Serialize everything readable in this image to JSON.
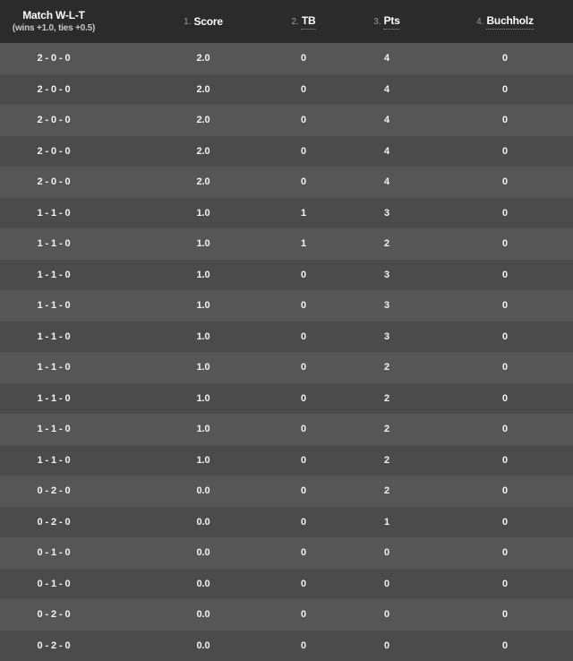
{
  "colors": {
    "header_bg": "#2b2b2b",
    "row_odd_bg": "#565656",
    "row_even_bg": "#4b4b4b",
    "row_text": "#f3f3f3",
    "header_label": "#fdfdfd",
    "header_prefix": "#9b9b9b",
    "subtitle": "#c9c9c9",
    "underline": "#909090"
  },
  "header": {
    "col1": {
      "title": "Match W-L-T",
      "subtitle": "(wins +1.0, ties +0.5)"
    },
    "columns": [
      {
        "prefix": "1.",
        "label": "Score",
        "abbr": false
      },
      {
        "prefix": "2.",
        "label": "TB",
        "abbr": true
      },
      {
        "prefix": "3.",
        "label": "Pts",
        "abbr": true
      },
      {
        "prefix": "4.",
        "label": "Buchholz",
        "abbr": true
      }
    ]
  },
  "rows": [
    {
      "wlt": "2 - 0 - 0",
      "score": "2.0",
      "tb": "0",
      "pts": "4",
      "buchholz": "0"
    },
    {
      "wlt": "2 - 0 - 0",
      "score": "2.0",
      "tb": "0",
      "pts": "4",
      "buchholz": "0"
    },
    {
      "wlt": "2 - 0 - 0",
      "score": "2.0",
      "tb": "0",
      "pts": "4",
      "buchholz": "0"
    },
    {
      "wlt": "2 - 0 - 0",
      "score": "2.0",
      "tb": "0",
      "pts": "4",
      "buchholz": "0"
    },
    {
      "wlt": "2 - 0 - 0",
      "score": "2.0",
      "tb": "0",
      "pts": "4",
      "buchholz": "0"
    },
    {
      "wlt": "1 - 1 - 0",
      "score": "1.0",
      "tb": "1",
      "pts": "3",
      "buchholz": "0"
    },
    {
      "wlt": "1 - 1 - 0",
      "score": "1.0",
      "tb": "1",
      "pts": "2",
      "buchholz": "0"
    },
    {
      "wlt": "1 - 1 - 0",
      "score": "1.0",
      "tb": "0",
      "pts": "3",
      "buchholz": "0"
    },
    {
      "wlt": "1 - 1 - 0",
      "score": "1.0",
      "tb": "0",
      "pts": "3",
      "buchholz": "0"
    },
    {
      "wlt": "1 - 1 - 0",
      "score": "1.0",
      "tb": "0",
      "pts": "3",
      "buchholz": "0"
    },
    {
      "wlt": "1 - 1 - 0",
      "score": "1.0",
      "tb": "0",
      "pts": "2",
      "buchholz": "0"
    },
    {
      "wlt": "1 - 1 - 0",
      "score": "1.0",
      "tb": "0",
      "pts": "2",
      "buchholz": "0"
    },
    {
      "wlt": "1 - 1 - 0",
      "score": "1.0",
      "tb": "0",
      "pts": "2",
      "buchholz": "0"
    },
    {
      "wlt": "1 - 1 - 0",
      "score": "1.0",
      "tb": "0",
      "pts": "2",
      "buchholz": "0"
    },
    {
      "wlt": "0 - 2 - 0",
      "score": "0.0",
      "tb": "0",
      "pts": "2",
      "buchholz": "0"
    },
    {
      "wlt": "0 - 2 - 0",
      "score": "0.0",
      "tb": "0",
      "pts": "1",
      "buchholz": "0"
    },
    {
      "wlt": "0 - 1 - 0",
      "score": "0.0",
      "tb": "0",
      "pts": "0",
      "buchholz": "0"
    },
    {
      "wlt": "0 - 1 - 0",
      "score": "0.0",
      "tb": "0",
      "pts": "0",
      "buchholz": "0"
    },
    {
      "wlt": "0 - 2 - 0",
      "score": "0.0",
      "tb": "0",
      "pts": "0",
      "buchholz": "0"
    },
    {
      "wlt": "0 - 2 - 0",
      "score": "0.0",
      "tb": "0",
      "pts": "0",
      "buchholz": "0"
    }
  ]
}
